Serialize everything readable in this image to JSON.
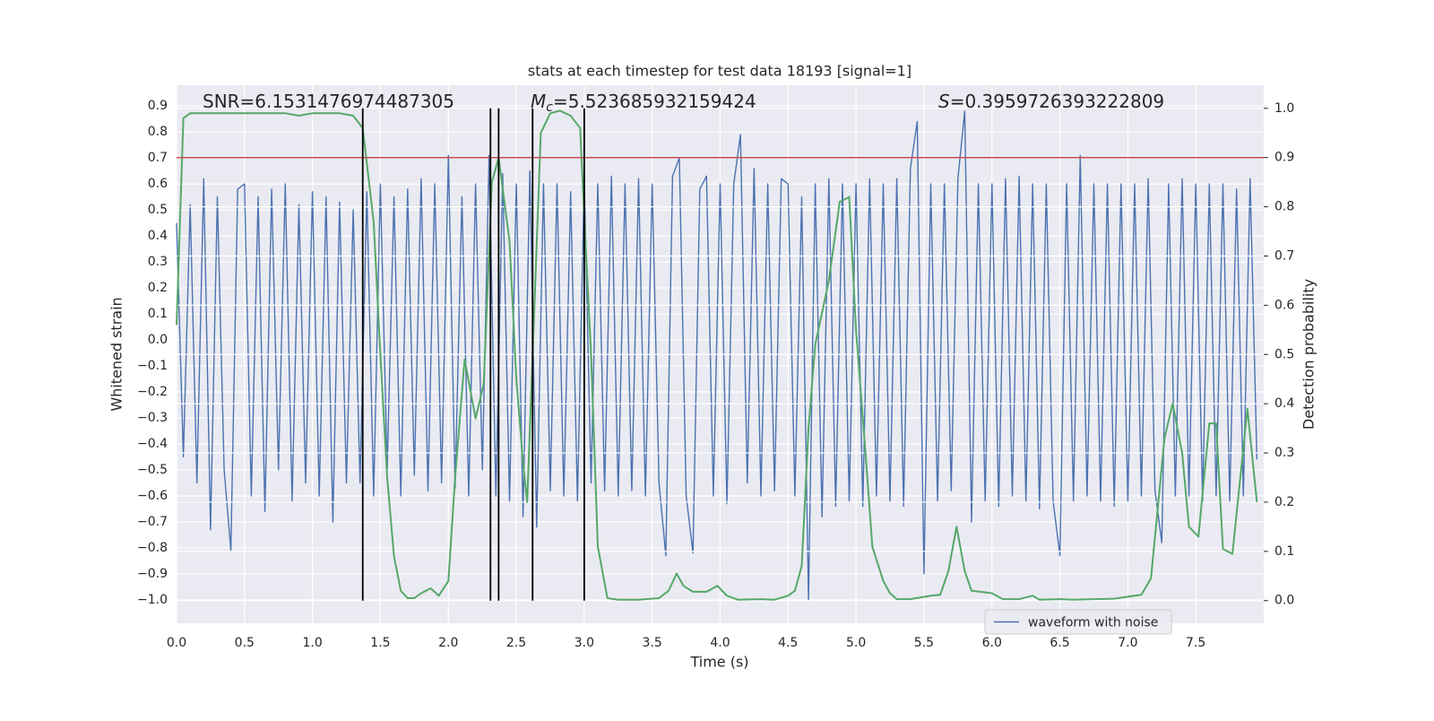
{
  "chart_data": {
    "type": "line",
    "title": "stats at each timestep for test data 18193 [signal=1]",
    "xlabel": "Time (s)",
    "ylabel": "Whitened strain",
    "y2label": "Detection probability",
    "xlim": [
      0,
      8
    ],
    "ylim": [
      -1.09,
      0.98
    ],
    "y2lim": [
      -0.046,
      1.047
    ],
    "xticks": [
      {
        "value": 0,
        "label": "0.0"
      },
      {
        "value": 0.5,
        "label": "0.5"
      },
      {
        "value": 1,
        "label": "1.0"
      },
      {
        "value": 1.5,
        "label": "1.5"
      },
      {
        "value": 2,
        "label": "2.0"
      },
      {
        "value": 2.5,
        "label": "2.5"
      },
      {
        "value": 3,
        "label": "3.0"
      },
      {
        "value": 3.5,
        "label": "3.5"
      },
      {
        "value": 4,
        "label": "4.0"
      },
      {
        "value": 4.5,
        "label": "4.5"
      },
      {
        "value": 5,
        "label": "5.0"
      },
      {
        "value": 5.5,
        "label": "5.5"
      },
      {
        "value": 6,
        "label": "6.0"
      },
      {
        "value": 6.5,
        "label": "6.5"
      },
      {
        "value": 7,
        "label": "7.0"
      },
      {
        "value": 7.5,
        "label": "7.5"
      }
    ],
    "yticks": [
      {
        "value": -1,
        "label": "−1.0"
      },
      {
        "value": -0.9,
        "label": "−0.9"
      },
      {
        "value": -0.8,
        "label": "−0.8"
      },
      {
        "value": -0.7,
        "label": "−0.7"
      },
      {
        "value": -0.6,
        "label": "−0.6"
      },
      {
        "value": -0.5,
        "label": "−0.5"
      },
      {
        "value": -0.4,
        "label": "−0.4"
      },
      {
        "value": -0.3,
        "label": "−0.3"
      },
      {
        "value": -0.2,
        "label": "−0.2"
      },
      {
        "value": -0.1,
        "label": "−0.1"
      },
      {
        "value": 0,
        "label": "0.0"
      },
      {
        "value": 0.1,
        "label": "0.1"
      },
      {
        "value": 0.2,
        "label": "0.2"
      },
      {
        "value": 0.3,
        "label": "0.3"
      },
      {
        "value": 0.4,
        "label": "0.4"
      },
      {
        "value": 0.5,
        "label": "0.5"
      },
      {
        "value": 0.6,
        "label": "0.6"
      },
      {
        "value": 0.7,
        "label": "0.7"
      },
      {
        "value": 0.8,
        "label": "0.8"
      },
      {
        "value": 0.9,
        "label": "0.9"
      }
    ],
    "y2ticks": [
      {
        "value": 0,
        "label": "0.0"
      },
      {
        "value": 0.1,
        "label": "0.1"
      },
      {
        "value": 0.2,
        "label": "0.2"
      },
      {
        "value": 0.3,
        "label": "0.3"
      },
      {
        "value": 0.4,
        "label": "0.4"
      },
      {
        "value": 0.5,
        "label": "0.5"
      },
      {
        "value": 0.6,
        "label": "0.6"
      },
      {
        "value": 0.7,
        "label": "0.7"
      },
      {
        "value": 0.8,
        "label": "0.8"
      },
      {
        "value": 0.9,
        "label": "0.9"
      },
      {
        "value": 1,
        "label": "1.0"
      }
    ],
    "grid": true,
    "legend": "lower right",
    "annotations": [
      {
        "text": "SNR=6.1531476974487305"
      },
      {
        "symbol": "M",
        "subscript": "c",
        "text": "=5.523685932159424"
      },
      {
        "symbol": "S",
        "text": "=0.3959726393222809"
      }
    ],
    "series": [
      {
        "name": "waveform with noise",
        "color": "#4c72b0",
        "x": [
          0,
          0.05,
          0.1,
          0.15,
          0.2,
          0.25,
          0.3,
          0.35,
          0.4,
          0.45,
          0.5,
          0.55,
          0.6,
          0.65,
          0.7,
          0.75,
          0.8,
          0.85,
          0.9,
          0.95,
          1,
          1.05,
          1.1,
          1.15,
          1.2,
          1.25,
          1.3,
          1.35,
          1.4,
          1.45,
          1.5,
          1.55,
          1.6,
          1.65,
          1.7,
          1.75,
          1.8,
          1.85,
          1.9,
          1.95,
          2,
          2.05,
          2.1,
          2.15,
          2.2,
          2.25,
          2.3,
          2.35,
          2.4,
          2.45,
          2.5,
          2.55,
          2.6,
          2.65,
          2.7,
          2.75,
          2.8,
          2.85,
          2.9,
          2.95,
          3,
          3.05,
          3.1,
          3.15,
          3.2,
          3.25,
          3.3,
          3.35,
          3.4,
          3.45,
          3.5,
          3.55,
          3.6,
          3.65,
          3.7,
          3.75,
          3.8,
          3.85,
          3.9,
          3.95,
          4,
          4.05,
          4.1,
          4.15,
          4.2,
          4.25,
          4.3,
          4.35,
          4.4,
          4.45,
          4.5,
          4.55,
          4.6,
          4.65,
          4.7,
          4.75,
          4.8,
          4.85,
          4.9,
          4.95,
          5,
          5.05,
          5.1,
          5.15,
          5.2,
          5.25,
          5.3,
          5.35,
          5.4,
          5.45,
          5.5,
          5.55,
          5.6,
          5.65,
          5.7,
          5.75,
          5.8,
          5.85,
          5.9,
          5.95,
          6,
          6.05,
          6.1,
          6.15,
          6.2,
          6.25,
          6.3,
          6.35,
          6.4,
          6.45,
          6.5,
          6.55,
          6.6,
          6.65,
          6.7,
          6.75,
          6.8,
          6.85,
          6.9,
          6.95,
          7,
          7.05,
          7.1,
          7.15,
          7.2,
          7.25,
          7.3,
          7.35,
          7.4,
          7.45,
          7.5,
          7.55,
          7.6,
          7.65,
          7.7,
          7.75,
          7.8,
          7.85,
          7.9,
          7.95
        ],
        "values": [
          0.45,
          -0.45,
          0.52,
          -0.55,
          0.62,
          -0.73,
          0.55,
          -0.5,
          -0.81,
          0.58,
          0.6,
          -0.6,
          0.55,
          -0.66,
          0.58,
          -0.5,
          0.6,
          -0.62,
          0.52,
          -0.55,
          0.57,
          -0.6,
          0.55,
          -0.7,
          0.53,
          -0.55,
          0.5,
          -0.55,
          0.57,
          -0.6,
          0.6,
          -0.5,
          0.55,
          -0.6,
          0.58,
          -0.52,
          0.62,
          -0.58,
          0.6,
          -0.55,
          0.71,
          -0.57,
          0.55,
          -0.6,
          0.6,
          -0.5,
          0.71,
          -0.6,
          0.64,
          -0.62,
          0.6,
          -0.68,
          0.65,
          -0.72,
          0.6,
          -0.58,
          0.6,
          -0.6,
          0.57,
          -0.62,
          0.62,
          -0.55,
          0.6,
          -0.58,
          0.63,
          -0.6,
          0.6,
          -0.58,
          0.62,
          -0.6,
          0.6,
          -0.55,
          -0.83,
          0.63,
          0.7,
          -0.6,
          -0.82,
          0.58,
          0.63,
          -0.6,
          0.6,
          -0.63,
          0.6,
          0.79,
          -0.55,
          0.66,
          -0.6,
          0.6,
          -0.58,
          0.62,
          0.6,
          -0.6,
          0.55,
          -1.0,
          0.6,
          -0.68,
          0.62,
          -0.64,
          0.6,
          -0.62,
          0.6,
          -0.64,
          0.62,
          -0.6,
          0.6,
          -0.62,
          0.62,
          -0.64,
          0.66,
          0.84,
          -0.9,
          0.6,
          -0.62,
          0.6,
          -0.58,
          0.62,
          0.88,
          -0.7,
          0.6,
          -0.62,
          0.6,
          -0.64,
          0.62,
          -0.6,
          0.63,
          -0.62,
          0.6,
          -0.65,
          0.6,
          -0.62,
          -0.83,
          0.6,
          -0.62,
          0.71,
          -0.6,
          0.6,
          -0.62,
          0.6,
          -0.64,
          0.6,
          -0.62,
          0.6,
          -0.6,
          0.62,
          -0.58,
          -0.78,
          0.6,
          -0.6,
          0.62,
          -0.6,
          0.6,
          -0.62,
          0.6,
          -0.6,
          0.6,
          -0.62,
          0.58,
          -0.6,
          0.62,
          -0.46
        ]
      },
      {
        "color": "#55a868",
        "axis": "y2",
        "x": [
          0,
          0.05,
          0.1,
          0.2,
          0.4,
          0.6,
          0.8,
          0.9,
          1,
          1.2,
          1.3,
          1.37,
          1.45,
          1.5,
          1.55,
          1.6,
          1.65,
          1.7,
          1.75,
          1.8,
          1.87,
          1.93,
          2,
          2.05,
          2.12,
          2.2,
          2.26,
          2.32,
          2.37,
          2.45,
          2.5,
          2.55,
          2.58,
          2.62,
          2.68,
          2.75,
          2.82,
          2.9,
          2.97,
          3,
          3.05,
          3.1,
          3.17,
          3.25,
          3.4,
          3.55,
          3.62,
          3.68,
          3.73,
          3.8,
          3.9,
          3.98,
          4.05,
          4.13,
          4.3,
          4.4,
          4.5,
          4.55,
          4.6,
          4.65,
          4.7,
          4.8,
          4.88,
          4.95,
          5,
          5.07,
          5.12,
          5.2,
          5.25,
          5.3,
          5.4,
          5.55,
          5.62,
          5.68,
          5.74,
          5.8,
          5.85,
          6,
          6.08,
          6.2,
          6.3,
          6.35,
          6.5,
          6.6,
          6.75,
          6.9,
          7.1,
          7.17,
          7.27,
          7.33,
          7.4,
          7.45,
          7.52,
          7.6,
          7.65,
          7.7,
          7.77,
          7.88,
          7.95
        ],
        "values": [
          0.56,
          0.98,
          0.99,
          0.99,
          0.99,
          0.99,
          0.99,
          0.985,
          0.99,
          0.99,
          0.985,
          0.96,
          0.77,
          0.5,
          0.25,
          0.09,
          0.02,
          0.005,
          0.005,
          0.015,
          0.025,
          0.01,
          0.04,
          0.25,
          0.49,
          0.37,
          0.44,
          0.85,
          0.9,
          0.73,
          0.45,
          0.28,
          0.2,
          0.5,
          0.95,
          0.99,
          0.995,
          0.985,
          0.96,
          0.78,
          0.5,
          0.11,
          0.005,
          0.002,
          0.002,
          0.005,
          0.02,
          0.055,
          0.03,
          0.018,
          0.018,
          0.03,
          0.01,
          0.002,
          0.003,
          0.002,
          0.01,
          0.02,
          0.07,
          0.35,
          0.52,
          0.65,
          0.81,
          0.82,
          0.55,
          0.3,
          0.11,
          0.04,
          0.015,
          0.003,
          0.003,
          0.01,
          0.012,
          0.06,
          0.15,
          0.06,
          0.02,
          0.015,
          0.003,
          0.003,
          0.01,
          0.002,
          0.003,
          0.002,
          0.003,
          0.004,
          0.012,
          0.045,
          0.33,
          0.4,
          0.3,
          0.15,
          0.13,
          0.36,
          0.36,
          0.105,
          0.095,
          0.39,
          0.2
        ]
      }
    ],
    "hlines": [
      {
        "value": 0.9,
        "axis": "y2",
        "color": "#c44e52"
      }
    ],
    "vlines": {
      "x": [
        1.37,
        2.31,
        2.37,
        2.62,
        3.0
      ],
      "ymin": 0,
      "ymax": 1,
      "axis": "y2",
      "color": "#000000"
    }
  }
}
